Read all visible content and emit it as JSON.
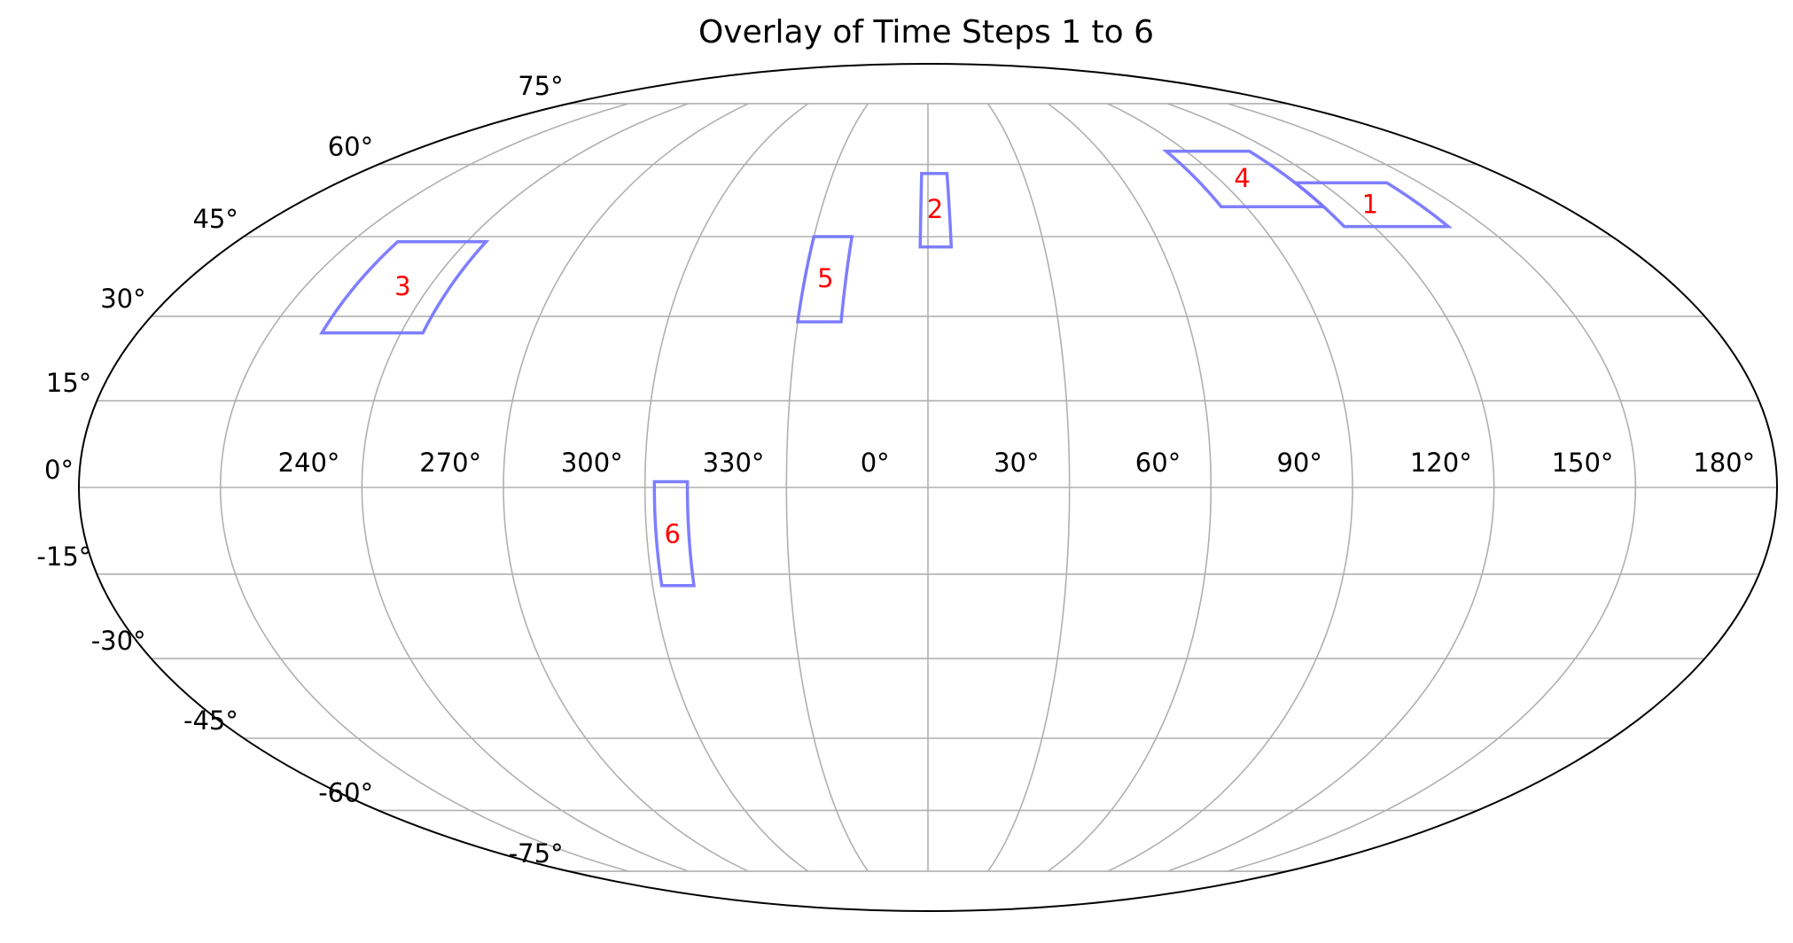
{
  "chart_data": {
    "type": "scatter",
    "projection": "mollweide",
    "title": "Overlay of Time Steps 1 to 6",
    "longitude_ticks": [
      "240°",
      "270°",
      "300°",
      "330°",
      "0°",
      "30°",
      "60°",
      "90°",
      "120°",
      "150°",
      "180°"
    ],
    "latitude_ticks": [
      "75°",
      "60°",
      "45°",
      "30°",
      "15°",
      "0°",
      "-15°",
      "-30°",
      "-45°",
      "-60°",
      "-75°"
    ],
    "grid": true,
    "outline_color": "#000000",
    "grid_color": "#b0b0b0",
    "region_color": "#7777ff",
    "label_color": "#ff0000",
    "regions": [
      {
        "label": "1",
        "lon_range": [
          127,
          155
        ],
        "lat_range": [
          47,
          56
        ]
      },
      {
        "label": "2",
        "lon_range": [
          13,
          21
        ],
        "lat_range": [
          43,
          58
        ]
      },
      {
        "label": "3",
        "lon_range": [
          -123,
          -100
        ],
        "lat_range": [
          27,
          44
        ]
      },
      {
        "label": "4",
        "lon_range": [
          98,
          127
        ],
        "lat_range": [
          51,
          63
        ]
      },
      {
        "label": "5",
        "lon_range": [
          -15,
          -5
        ],
        "lat_range": [
          29,
          45
        ]
      },
      {
        "label": "6",
        "lon_range": [
          -43,
          -36
        ],
        "lat_range": [
          -17,
          1
        ]
      }
    ]
  }
}
